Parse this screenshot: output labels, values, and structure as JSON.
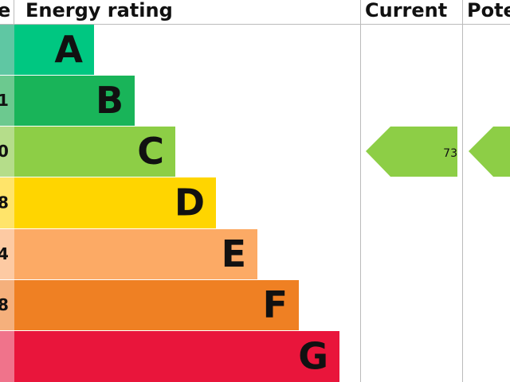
{
  "header": {
    "score": "e",
    "rating": "Energy rating",
    "current": "Current",
    "potential": "Pote"
  },
  "rows": [
    {
      "letter": "A",
      "score": null
    },
    {
      "letter": "B",
      "score": "1"
    },
    {
      "letter": "C",
      "score": "0"
    },
    {
      "letter": "D",
      "score": "8"
    },
    {
      "letter": "E",
      "score": "4"
    },
    {
      "letter": "F",
      "score": "8"
    },
    {
      "letter": "G",
      "score": null
    }
  ],
  "current_rating": 73
}
